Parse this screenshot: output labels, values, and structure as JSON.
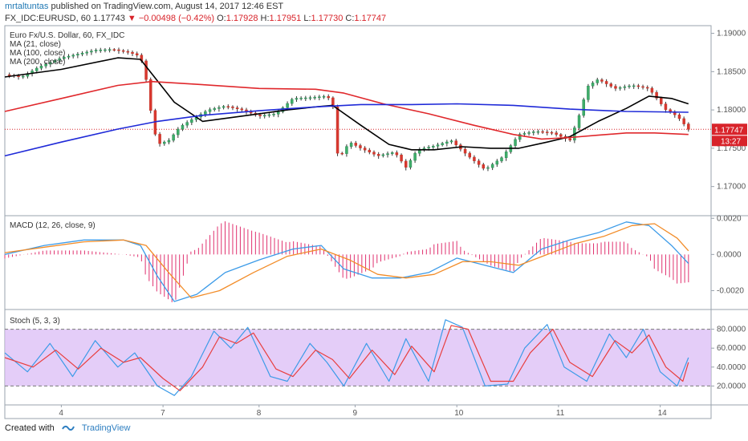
{
  "header": {
    "author": "mrtaltuntas",
    "published_text": " published on TradingView.com, August 14, 2017 12:46 EST",
    "symbol_line": "FX_IDC:EURUSD, 60",
    "last": "1.17743",
    "change_arrow": "▼",
    "change": "−0.00498 (−0.42%)",
    "o_label": "O:",
    "o": "1.17928",
    "h_label": "H:",
    "h": "1.17951",
    "l_label": "L:",
    "l": "1.17730",
    "c_label": "C:",
    "c": "1.17747"
  },
  "chart_data": {
    "type": "line",
    "price_panel": {
      "title_lines": [
        "Euro Fx/U.S. Dollar, 60, FX_IDC",
        "MA (21, close)",
        "MA (100, close)",
        "MA (200, close)"
      ],
      "ylim": [
        1.1663,
        1.191
      ],
      "ticks": [
        "1.19000",
        "1.18500",
        "1.18000",
        "1.17500",
        "1.17000"
      ],
      "tick_values": [
        1.19,
        1.185,
        1.18,
        1.175,
        1.17
      ],
      "last_price_label": "1.17747",
      "last_price": 1.17747,
      "countdown_label": "13:27",
      "close_series": [
        {
          "x": 0,
          "y": 1.1846
        },
        {
          "x": 0.3,
          "y": 1.1843
        },
        {
          "x": 0.6,
          "y": 1.1856
        },
        {
          "x": 1.0,
          "y": 1.1868
        },
        {
          "x": 1.3,
          "y": 1.1873
        },
        {
          "x": 1.6,
          "y": 1.1878
        },
        {
          "x": 1.9,
          "y": 1.1879
        },
        {
          "x": 2.2,
          "y": 1.1875
        },
        {
          "x": 2.4,
          "y": 1.187
        },
        {
          "x": 2.5,
          "y": 1.184
        },
        {
          "x": 2.6,
          "y": 1.179
        },
        {
          "x": 2.7,
          "y": 1.1755
        },
        {
          "x": 2.9,
          "y": 1.176
        },
        {
          "x": 3.1,
          "y": 1.1778
        },
        {
          "x": 3.3,
          "y": 1.1787
        },
        {
          "x": 3.6,
          "y": 1.18
        },
        {
          "x": 3.9,
          "y": 1.1805
        },
        {
          "x": 4.2,
          "y": 1.18
        },
        {
          "x": 4.5,
          "y": 1.1792
        },
        {
          "x": 4.8,
          "y": 1.1795
        },
        {
          "x": 5.1,
          "y": 1.1815
        },
        {
          "x": 5.4,
          "y": 1.1816
        },
        {
          "x": 5.7,
          "y": 1.1818
        },
        {
          "x": 5.8,
          "y": 1.181
        },
        {
          "x": 5.9,
          "y": 1.1735
        },
        {
          "x": 6.1,
          "y": 1.1758
        },
        {
          "x": 6.3,
          "y": 1.175
        },
        {
          "x": 6.6,
          "y": 1.174
        },
        {
          "x": 6.9,
          "y": 1.1745
        },
        {
          "x": 7.1,
          "y": 1.1725
        },
        {
          "x": 7.3,
          "y": 1.1748
        },
        {
          "x": 7.6,
          "y": 1.1753
        },
        {
          "x": 7.9,
          "y": 1.176
        },
        {
          "x": 8.2,
          "y": 1.174
        },
        {
          "x": 8.5,
          "y": 1.1722
        },
        {
          "x": 8.8,
          "y": 1.1738
        },
        {
          "x": 9.1,
          "y": 1.1768
        },
        {
          "x": 9.4,
          "y": 1.1772
        },
        {
          "x": 9.7,
          "y": 1.177
        },
        {
          "x": 10.0,
          "y": 1.176
        },
        {
          "x": 10.2,
          "y": 1.18
        },
        {
          "x": 10.3,
          "y": 1.183
        },
        {
          "x": 10.5,
          "y": 1.184
        },
        {
          "x": 10.8,
          "y": 1.1828
        },
        {
          "x": 11.1,
          "y": 1.1832
        },
        {
          "x": 11.4,
          "y": 1.1828
        },
        {
          "x": 11.7,
          "y": 1.18
        },
        {
          "x": 11.9,
          "y": 1.1792
        },
        {
          "x": 12.1,
          "y": 1.17747
        }
      ],
      "series": [
        {
          "name": "MA (21, close)",
          "color": "#000000",
          "points": [
            {
              "x": 0,
              "y": 1.1843
            },
            {
              "x": 1.0,
              "y": 1.1853
            },
            {
              "x": 2.0,
              "y": 1.1868
            },
            {
              "x": 2.4,
              "y": 1.1866
            },
            {
              "x": 3.0,
              "y": 1.181
            },
            {
              "x": 3.5,
              "y": 1.1785
            },
            {
              "x": 4.0,
              "y": 1.179
            },
            {
              "x": 4.5,
              "y": 1.1795
            },
            {
              "x": 5.0,
              "y": 1.18
            },
            {
              "x": 5.5,
              "y": 1.1804
            },
            {
              "x": 5.8,
              "y": 1.1806
            },
            {
              "x": 6.3,
              "y": 1.178
            },
            {
              "x": 6.8,
              "y": 1.1755
            },
            {
              "x": 7.2,
              "y": 1.1748
            },
            {
              "x": 7.6,
              "y": 1.1748
            },
            {
              "x": 8.1,
              "y": 1.1752
            },
            {
              "x": 8.6,
              "y": 1.175
            },
            {
              "x": 9.1,
              "y": 1.175
            },
            {
              "x": 9.6,
              "y": 1.1758
            },
            {
              "x": 10.0,
              "y": 1.1765
            },
            {
              "x": 10.5,
              "y": 1.1785
            },
            {
              "x": 11.0,
              "y": 1.1802
            },
            {
              "x": 11.4,
              "y": 1.1818
            },
            {
              "x": 11.8,
              "y": 1.1815
            },
            {
              "x": 12.1,
              "y": 1.1808
            }
          ]
        },
        {
          "name": "MA (100, close)",
          "color": "#e0282c",
          "points": [
            {
              "x": 0,
              "y": 1.1798
            },
            {
              "x": 1.0,
              "y": 1.1815
            },
            {
              "x": 2.0,
              "y": 1.1832
            },
            {
              "x": 2.6,
              "y": 1.1837
            },
            {
              "x": 3.5,
              "y": 1.1833
            },
            {
              "x": 4.5,
              "y": 1.1828
            },
            {
              "x": 5.5,
              "y": 1.1827
            },
            {
              "x": 6.0,
              "y": 1.1822
            },
            {
              "x": 6.7,
              "y": 1.1808
            },
            {
              "x": 7.5,
              "y": 1.1795
            },
            {
              "x": 8.3,
              "y": 1.178
            },
            {
              "x": 9.0,
              "y": 1.1768
            },
            {
              "x": 9.5,
              "y": 1.1762
            },
            {
              "x": 10.0,
              "y": 1.1764
            },
            {
              "x": 10.5,
              "y": 1.1767
            },
            {
              "x": 11.0,
              "y": 1.177
            },
            {
              "x": 11.5,
              "y": 1.177
            },
            {
              "x": 12.1,
              "y": 1.1768
            }
          ]
        },
        {
          "name": "MA (200, close)",
          "color": "#1f2ad8",
          "points": [
            {
              "x": 0,
              "y": 1.174
            },
            {
              "x": 1.0,
              "y": 1.1758
            },
            {
              "x": 2.0,
              "y": 1.1775
            },
            {
              "x": 2.7,
              "y": 1.1785
            },
            {
              "x": 3.5,
              "y": 1.1793
            },
            {
              "x": 4.5,
              "y": 1.1799
            },
            {
              "x": 5.5,
              "y": 1.1804
            },
            {
              "x": 6.3,
              "y": 1.1807
            },
            {
              "x": 7.2,
              "y": 1.1807
            },
            {
              "x": 8.0,
              "y": 1.1808
            },
            {
              "x": 9.0,
              "y": 1.1806
            },
            {
              "x": 10.0,
              "y": 1.1801
            },
            {
              "x": 11.0,
              "y": 1.1798
            },
            {
              "x": 12.1,
              "y": 1.1797
            }
          ]
        }
      ]
    },
    "macd_panel": {
      "title": "MACD (12, 26, close, 9)",
      "ylim": [
        -0.003,
        0.0021
      ],
      "ticks": [
        "0.0020",
        "0.0000",
        "-0.0020"
      ],
      "tick_values": [
        0.002,
        0.0,
        -0.002
      ],
      "macd": [
        {
          "x": 0,
          "y": 0.0
        },
        {
          "x": 0.7,
          "y": 0.0005
        },
        {
          "x": 1.4,
          "y": 0.0008
        },
        {
          "x": 2.1,
          "y": 0.0008
        },
        {
          "x": 2.4,
          "y": 0.0005
        },
        {
          "x": 2.7,
          "y": -0.0012
        },
        {
          "x": 3.0,
          "y": -0.0026
        },
        {
          "x": 3.4,
          "y": -0.0022
        },
        {
          "x": 3.9,
          "y": -0.001
        },
        {
          "x": 4.5,
          "y": -0.0003
        },
        {
          "x": 5.1,
          "y": 0.0003
        },
        {
          "x": 5.6,
          "y": 0.0005
        },
        {
          "x": 6.0,
          "y": -0.0008
        },
        {
          "x": 6.5,
          "y": -0.0013
        },
        {
          "x": 7.0,
          "y": -0.0013
        },
        {
          "x": 7.5,
          "y": -0.001
        },
        {
          "x": 8.0,
          "y": -0.0002
        },
        {
          "x": 8.5,
          "y": -0.0006
        },
        {
          "x": 9.0,
          "y": -0.001
        },
        {
          "x": 9.5,
          "y": 0.0003
        },
        {
          "x": 10.0,
          "y": 0.0008
        },
        {
          "x": 10.5,
          "y": 0.0012
        },
        {
          "x": 11.0,
          "y": 0.0018
        },
        {
          "x": 11.4,
          "y": 0.0016
        },
        {
          "x": 11.8,
          "y": 0.0005
        },
        {
          "x": 12.1,
          "y": -0.0005
        }
      ],
      "signal": [
        {
          "x": 0,
          "y": 0.0001
        },
        {
          "x": 0.7,
          "y": 0.0004
        },
        {
          "x": 1.4,
          "y": 0.0007
        },
        {
          "x": 2.1,
          "y": 0.0008
        },
        {
          "x": 2.5,
          "y": 0.0005
        },
        {
          "x": 2.9,
          "y": -0.001
        },
        {
          "x": 3.3,
          "y": -0.0024
        },
        {
          "x": 3.8,
          "y": -0.002
        },
        {
          "x": 4.4,
          "y": -0.001
        },
        {
          "x": 5.0,
          "y": -0.0001
        },
        {
          "x": 5.6,
          "y": 0.0003
        },
        {
          "x": 6.1,
          "y": -0.0003
        },
        {
          "x": 6.6,
          "y": -0.0011
        },
        {
          "x": 7.1,
          "y": -0.0013
        },
        {
          "x": 7.6,
          "y": -0.0011
        },
        {
          "x": 8.1,
          "y": -0.0004
        },
        {
          "x": 8.6,
          "y": -0.0004
        },
        {
          "x": 9.1,
          "y": -0.0006
        },
        {
          "x": 9.6,
          "y": 0.0
        },
        {
          "x": 10.1,
          "y": 0.0006
        },
        {
          "x": 10.6,
          "y": 0.001
        },
        {
          "x": 11.1,
          "y": 0.0016
        },
        {
          "x": 11.5,
          "y": 0.0017
        },
        {
          "x": 11.9,
          "y": 0.0009
        },
        {
          "x": 12.1,
          "y": 0.0002
        }
      ],
      "colors": {
        "macd": "#3c9be8",
        "signal": "#f28c28",
        "hist": "#e0306e"
      }
    },
    "stoch_panel": {
      "title": "Stoch (5, 3, 3)",
      "ylim": [
        0,
        100
      ],
      "ticks": [
        "80.0000",
        "60.0000",
        "40.0000",
        "20.0000"
      ],
      "tick_values": [
        80,
        60,
        40,
        20
      ],
      "band": [
        20,
        80
      ],
      "k": [
        {
          "x": 0,
          "y": 55
        },
        {
          "x": 0.4,
          "y": 35
        },
        {
          "x": 0.8,
          "y": 65
        },
        {
          "x": 1.2,
          "y": 30
        },
        {
          "x": 1.6,
          "y": 68
        },
        {
          "x": 2.0,
          "y": 40
        },
        {
          "x": 2.3,
          "y": 55
        },
        {
          "x": 2.7,
          "y": 20
        },
        {
          "x": 3.0,
          "y": 10
        },
        {
          "x": 3.3,
          "y": 30
        },
        {
          "x": 3.7,
          "y": 78
        },
        {
          "x": 4.0,
          "y": 60
        },
        {
          "x": 4.3,
          "y": 82
        },
        {
          "x": 4.7,
          "y": 30
        },
        {
          "x": 5.0,
          "y": 25
        },
        {
          "x": 5.4,
          "y": 65
        },
        {
          "x": 5.7,
          "y": 45
        },
        {
          "x": 6.0,
          "y": 20
        },
        {
          "x": 6.4,
          "y": 65
        },
        {
          "x": 6.8,
          "y": 25
        },
        {
          "x": 7.1,
          "y": 70
        },
        {
          "x": 7.5,
          "y": 25
        },
        {
          "x": 7.8,
          "y": 90
        },
        {
          "x": 8.1,
          "y": 82
        },
        {
          "x": 8.5,
          "y": 20
        },
        {
          "x": 8.9,
          "y": 22
        },
        {
          "x": 9.2,
          "y": 60
        },
        {
          "x": 9.6,
          "y": 85
        },
        {
          "x": 9.9,
          "y": 40
        },
        {
          "x": 10.3,
          "y": 25
        },
        {
          "x": 10.7,
          "y": 75
        },
        {
          "x": 11.0,
          "y": 50
        },
        {
          "x": 11.3,
          "y": 80
        },
        {
          "x": 11.6,
          "y": 35
        },
        {
          "x": 11.9,
          "y": 20
        },
        {
          "x": 12.1,
          "y": 50
        }
      ],
      "d": [
        {
          "x": 0,
          "y": 50
        },
        {
          "x": 0.5,
          "y": 40
        },
        {
          "x": 0.9,
          "y": 58
        },
        {
          "x": 1.3,
          "y": 38
        },
        {
          "x": 1.7,
          "y": 60
        },
        {
          "x": 2.1,
          "y": 45
        },
        {
          "x": 2.4,
          "y": 50
        },
        {
          "x": 2.8,
          "y": 28
        },
        {
          "x": 3.1,
          "y": 15
        },
        {
          "x": 3.5,
          "y": 40
        },
        {
          "x": 3.8,
          "y": 72
        },
        {
          "x": 4.1,
          "y": 65
        },
        {
          "x": 4.4,
          "y": 76
        },
        {
          "x": 4.8,
          "y": 38
        },
        {
          "x": 5.1,
          "y": 30
        },
        {
          "x": 5.5,
          "y": 58
        },
        {
          "x": 5.8,
          "y": 48
        },
        {
          "x": 6.1,
          "y": 28
        },
        {
          "x": 6.5,
          "y": 58
        },
        {
          "x": 6.9,
          "y": 32
        },
        {
          "x": 7.2,
          "y": 62
        },
        {
          "x": 7.6,
          "y": 35
        },
        {
          "x": 7.9,
          "y": 84
        },
        {
          "x": 8.2,
          "y": 80
        },
        {
          "x": 8.6,
          "y": 25
        },
        {
          "x": 9.0,
          "y": 25
        },
        {
          "x": 9.3,
          "y": 55
        },
        {
          "x": 9.7,
          "y": 80
        },
        {
          "x": 10.0,
          "y": 45
        },
        {
          "x": 10.4,
          "y": 30
        },
        {
          "x": 10.8,
          "y": 68
        },
        {
          "x": 11.1,
          "y": 55
        },
        {
          "x": 11.4,
          "y": 74
        },
        {
          "x": 11.7,
          "y": 40
        },
        {
          "x": 12.0,
          "y": 25
        },
        {
          "x": 12.1,
          "y": 45
        }
      ],
      "colors": {
        "k": "#3c9be8",
        "d": "#e83e3e",
        "band": "#d9b8f5"
      }
    },
    "x_axis": {
      "xlim": [
        0,
        12.5
      ],
      "tick_labels": [
        "4",
        "7",
        "8",
        "9",
        "10",
        "11",
        "14"
      ],
      "tick_positions": [
        1.0,
        2.8,
        4.5,
        6.2,
        8.0,
        9.8,
        11.6
      ]
    }
  },
  "footer": {
    "created_with": "Created with",
    "brand": "TradingView"
  }
}
